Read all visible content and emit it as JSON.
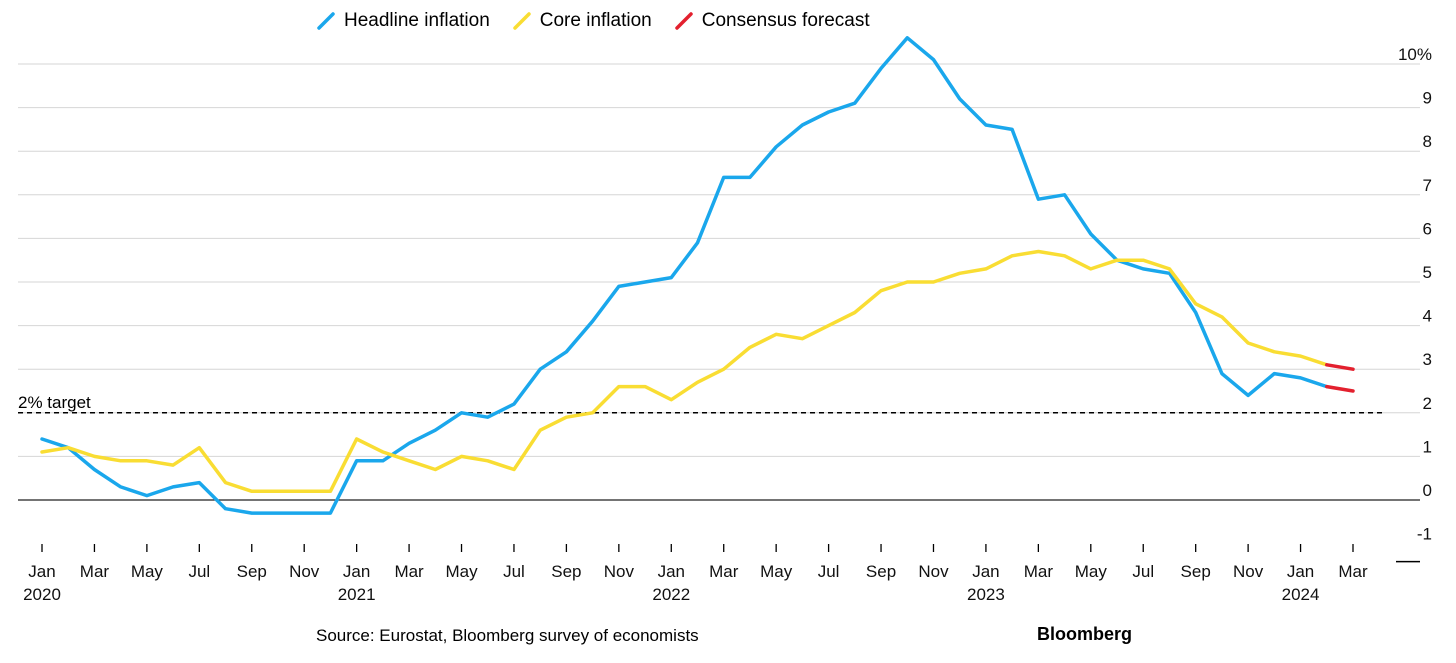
{
  "legend": [
    {
      "label": "Headline inflation",
      "color": "#1aa7ec"
    },
    {
      "label": "Core inflation",
      "color": "#f9dd33"
    },
    {
      "label": "Consensus forecast",
      "color": "#e3202e"
    }
  ],
  "source": "Source: Eurostat, Bloomberg survey of economists",
  "brand": "Bloomberg",
  "target_label": "2% target",
  "chart_data": {
    "type": "line",
    "ylim": [
      -1,
      10
    ],
    "y_ticks": [
      {
        "value": 10,
        "label": "10%"
      },
      {
        "value": 9,
        "label": "9"
      },
      {
        "value": 8,
        "label": "8"
      },
      {
        "value": 7,
        "label": "7"
      },
      {
        "value": 6,
        "label": "6"
      },
      {
        "value": 5,
        "label": "5"
      },
      {
        "value": 4,
        "label": "4"
      },
      {
        "value": 3,
        "label": "3"
      },
      {
        "value": 2,
        "label": "2"
      },
      {
        "value": 1,
        "label": "1"
      },
      {
        "value": 0,
        "label": "0"
      },
      {
        "value": -1,
        "label": "-1"
      }
    ],
    "x_ticks": [
      {
        "month": "2020-01",
        "label": "Jan",
        "year": "2020"
      },
      {
        "month": "2020-03",
        "label": "Mar"
      },
      {
        "month": "2020-05",
        "label": "May"
      },
      {
        "month": "2020-07",
        "label": "Jul"
      },
      {
        "month": "2020-09",
        "label": "Sep"
      },
      {
        "month": "2020-11",
        "label": "Nov"
      },
      {
        "month": "2021-01",
        "label": "Jan",
        "year": "2021"
      },
      {
        "month": "2021-03",
        "label": "Mar"
      },
      {
        "month": "2021-05",
        "label": "May"
      },
      {
        "month": "2021-07",
        "label": "Jul"
      },
      {
        "month": "2021-09",
        "label": "Sep"
      },
      {
        "month": "2021-11",
        "label": "Nov"
      },
      {
        "month": "2022-01",
        "label": "Jan",
        "year": "2022"
      },
      {
        "month": "2022-03",
        "label": "Mar"
      },
      {
        "month": "2022-05",
        "label": "May"
      },
      {
        "month": "2022-07",
        "label": "Jul"
      },
      {
        "month": "2022-09",
        "label": "Sep"
      },
      {
        "month": "2022-11",
        "label": "Nov"
      },
      {
        "month": "2023-01",
        "label": "Jan",
        "year": "2023"
      },
      {
        "month": "2023-03",
        "label": "Mar"
      },
      {
        "month": "2023-05",
        "label": "May"
      },
      {
        "month": "2023-07",
        "label": "Jul"
      },
      {
        "month": "2023-09",
        "label": "Sep"
      },
      {
        "month": "2023-11",
        "label": "Nov"
      },
      {
        "month": "2024-01",
        "label": "Jan",
        "year": "2024"
      },
      {
        "month": "2024-03",
        "label": "Mar"
      }
    ],
    "target_value": 2,
    "grid": true,
    "legend_position": "top",
    "series": [
      {
        "name": "Headline inflation",
        "color": "#1aa7ec",
        "start_month": "2020-01",
        "values": [
          1.4,
          1.2,
          0.7,
          0.3,
          0.1,
          0.3,
          0.4,
          -0.2,
          -0.3,
          -0.3,
          -0.3,
          -0.3,
          0.9,
          0.9,
          1.3,
          1.6,
          2.0,
          1.9,
          2.2,
          3.0,
          3.4,
          4.1,
          4.9,
          5.0,
          5.1,
          5.9,
          7.4,
          7.4,
          8.1,
          8.6,
          8.9,
          9.1,
          9.9,
          10.6,
          10.1,
          9.2,
          8.6,
          8.5,
          6.9,
          7.0,
          6.1,
          5.5,
          5.3,
          5.2,
          4.3,
          2.9,
          2.4,
          2.9,
          2.8,
          2.6
        ]
      },
      {
        "name": "Core inflation",
        "color": "#f9dd33",
        "start_month": "2020-01",
        "values": [
          1.1,
          1.2,
          1.0,
          0.9,
          0.9,
          0.8,
          1.2,
          0.4,
          0.2,
          0.2,
          0.2,
          0.2,
          1.4,
          1.1,
          0.9,
          0.7,
          1.0,
          0.9,
          0.7,
          1.6,
          1.9,
          2.0,
          2.6,
          2.6,
          2.3,
          2.7,
          3.0,
          3.5,
          3.8,
          3.7,
          4.0,
          4.3,
          4.8,
          5.0,
          5.0,
          5.2,
          5.3,
          5.6,
          5.7,
          5.6,
          5.3,
          5.5,
          5.5,
          5.3,
          4.5,
          4.2,
          3.6,
          3.4,
          3.3,
          3.1
        ]
      },
      {
        "name": "Consensus forecast",
        "color": "#e3202e",
        "segments": [
          {
            "months": [
              "2024-02",
              "2024-03"
            ],
            "values": [
              2.6,
              2.5
            ]
          },
          {
            "months": [
              "2024-02",
              "2024-03"
            ],
            "values": [
              3.1,
              3.0
            ]
          }
        ]
      }
    ]
  }
}
